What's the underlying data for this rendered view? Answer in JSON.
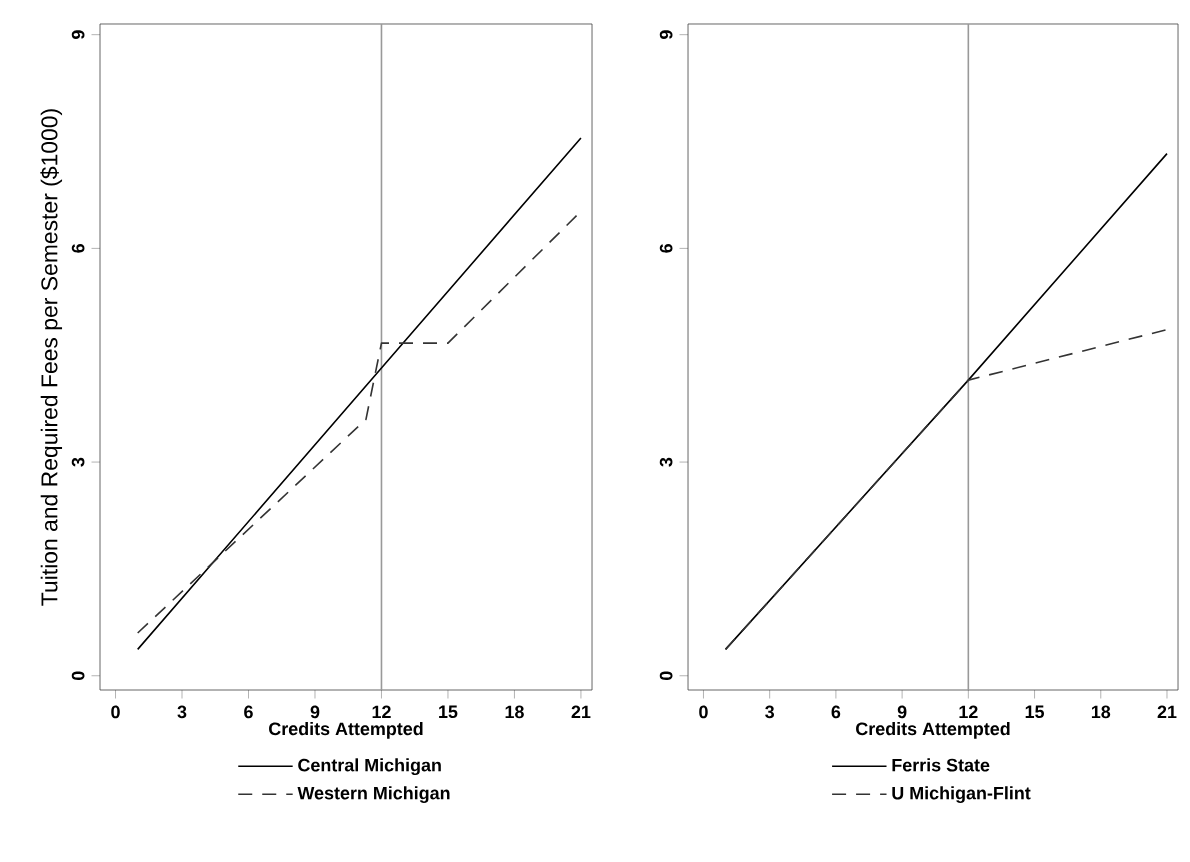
{
  "chart_data": [
    {
      "type": "line",
      "xlabel": "Credits Attempted",
      "ylabel": "Tuition and Required Fees per Semester ($1000)",
      "xlim": [
        -0.7,
        21.5
      ],
      "ylim": [
        -0.2,
        9.15
      ],
      "xticks": [
        0,
        3,
        6,
        9,
        12,
        15,
        18,
        21
      ],
      "yticks": [
        0,
        3,
        6,
        9
      ],
      "legend": "bottom",
      "ref_lines": [
        {
          "axis": "x",
          "value": 12,
          "color": "#999999"
        }
      ],
      "series": [
        {
          "name": "Central Michigan",
          "color": "#000000",
          "line_style": "solid",
          "x": [
            1,
            12,
            21
          ],
          "values": [
            0.37,
            4.32,
            7.55
          ]
        },
        {
          "name": "Western Michigan",
          "color": "#333333",
          "line_style": "dashed",
          "x": [
            1,
            11.3,
            12,
            15,
            21
          ],
          "values": [
            0.6,
            3.6,
            4.67,
            4.67,
            6.52
          ]
        }
      ]
    },
    {
      "type": "line",
      "xlabel": "Credits Attempted",
      "xlim": [
        -0.7,
        21.5
      ],
      "ylim": [
        -0.2,
        9.15
      ],
      "xticks": [
        0,
        3,
        6,
        9,
        12,
        15,
        18,
        21
      ],
      "yticks": [
        0,
        3,
        6,
        9
      ],
      "legend": "bottom",
      "ref_lines": [
        {
          "axis": "x",
          "value": 12,
          "color": "#999999"
        }
      ],
      "series": [
        {
          "name": "Ferris State",
          "color": "#000000",
          "line_style": "solid",
          "x": [
            1,
            12,
            21
          ],
          "values": [
            0.37,
            4.15,
            7.33
          ]
        },
        {
          "name": "U Michigan-Flint",
          "color": "#333333",
          "line_style": "dashed",
          "x": [
            1,
            12,
            21
          ],
          "values": [
            0.37,
            4.15,
            4.86
          ]
        }
      ]
    }
  ]
}
